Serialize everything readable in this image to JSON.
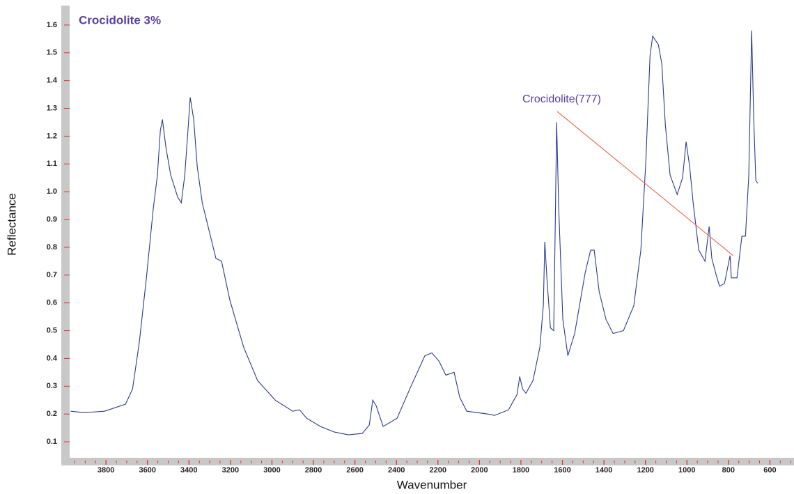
{
  "chart_data": {
    "type": "line",
    "title": "Crocidolite 3%",
    "x_label": "Wavenumber",
    "y_label": "Reflectance",
    "color": "#2b3a8c",
    "xlim": [
      3975,
      484
    ],
    "ylim": [
      0.04,
      1.67
    ],
    "xticks": [
      3800,
      3600,
      3400,
      3200,
      3000,
      2800,
      2600,
      2400,
      2200,
      2000,
      1800,
      1600,
      1400,
      1200,
      1000,
      800,
      600
    ],
    "yticks": [
      0.1,
      0.2,
      0.3,
      0.4,
      0.5,
      0.6,
      0.7,
      0.8,
      0.9,
      {
        "value": 1,
        "label": "1.0"
      },
      1.1,
      1.2,
      1.3,
      1.4,
      1.5,
      1.6
    ],
    "x": [
      3970,
      3907,
      3807,
      3706,
      3672,
      3639,
      3605,
      3572,
      3552,
      3538,
      3528,
      3511,
      3488,
      3454,
      3437,
      3420,
      3403,
      3394,
      3377,
      3360,
      3336,
      3303,
      3270,
      3243,
      3203,
      3136,
      3069,
      2984,
      2900,
      2867,
      2833,
      2766,
      2699,
      2632,
      2565,
      2531,
      2514,
      2498,
      2464,
      2397,
      2330,
      2263,
      2229,
      2195,
      2162,
      2122,
      2095,
      2061,
      1960,
      1927,
      1860,
      1819,
      1806,
      1792,
      1776,
      1742,
      1709,
      1692,
      1685,
      1675,
      1658,
      1642,
      1635,
      1628,
      1618,
      1598,
      1574,
      1541,
      1490,
      1464,
      1447,
      1423,
      1390,
      1356,
      1306,
      1256,
      1222,
      1198,
      1178,
      1165,
      1138,
      1121,
      1104,
      1081,
      1047,
      1021,
      1004,
      987,
      970,
      943,
      913,
      893,
      880,
      859,
      843,
      819,
      792,
      786,
      759,
      735,
      718,
      702,
      688,
      678,
      668,
      658
    ],
    "values": [
      0.21,
      0.205,
      0.21,
      0.235,
      0.29,
      0.46,
      0.69,
      0.94,
      1.06,
      1.22,
      1.26,
      1.16,
      1.06,
      0.98,
      0.96,
      1.06,
      1.24,
      1.34,
      1.26,
      1.09,
      0.96,
      0.86,
      0.76,
      0.75,
      0.61,
      0.44,
      0.32,
      0.25,
      0.21,
      0.215,
      0.185,
      0.155,
      0.135,
      0.125,
      0.13,
      0.16,
      0.25,
      0.23,
      0.155,
      0.185,
      0.3,
      0.41,
      0.42,
      0.39,
      0.34,
      0.35,
      0.26,
      0.21,
      0.2,
      0.195,
      0.215,
      0.27,
      0.335,
      0.29,
      0.275,
      0.32,
      0.44,
      0.59,
      0.82,
      0.69,
      0.51,
      0.5,
      0.86,
      1.25,
      0.94,
      0.54,
      0.41,
      0.49,
      0.71,
      0.79,
      0.79,
      0.64,
      0.54,
      0.49,
      0.5,
      0.59,
      0.79,
      1.11,
      1.49,
      1.56,
      1.53,
      1.46,
      1.24,
      1.06,
      0.99,
      1.05,
      1.18,
      1.09,
      0.96,
      0.79,
      0.75,
      0.875,
      0.76,
      0.7,
      0.66,
      0.67,
      0.77,
      0.69,
      0.69,
      0.84,
      0.84,
      1.06,
      1.58,
      1.26,
      1.04,
      1.03
    ],
    "annotations": [
      {
        "text": "Crocidolite(777)",
        "x": 777,
        "y": 0.77
      }
    ]
  }
}
